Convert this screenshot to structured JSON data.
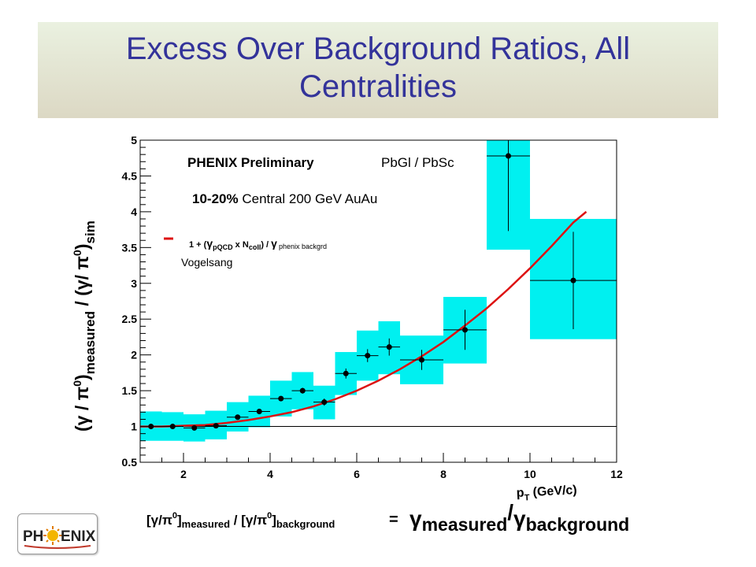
{
  "title": "Excess Over Background Ratios,  All Centralities",
  "title_lines": [
    "Excess Over Background Ratios,  All",
    "Centralities"
  ],
  "annotations": {
    "preliminary": "PHENIX Preliminary",
    "detectors": "PbGl / PbSc",
    "centrality_bold": "10-20%",
    "centrality_rest": "Central  200 GeV AuAu",
    "legend_pre": "1 + (",
    "legend_sub1": "pQCD",
    "legend_mid": " x N",
    "legend_sub2": "coll",
    "legend_post": ") / ",
    "legend_sub3": "phenix backgrd",
    "legend_author": "Vogelsang",
    "gamma": "γ"
  },
  "y_axis_label": {
    "part1": "(γ / π",
    "sup1": "0",
    "part2": ")",
    "sub1": "measured",
    "part3": " / (γ/ π",
    "sup2": "0",
    "part4": ")",
    "sub2": "sim"
  },
  "x_axis_label": {
    "p": "p",
    "sub": "T",
    "unit": " (GeV/c)"
  },
  "formula": {
    "left_open": "[γ/π",
    "sup": "0",
    "left_close": "]",
    "sub_measured": "measured",
    "slash": " / ",
    "right_open": "[γ/π",
    "right_close": "]",
    "sub_background": "background",
    "equals": "=",
    "gamma": "γ",
    "big_measured": "measured",
    "big_slash": "/",
    "big_background": "background"
  },
  "logo": {
    "left": "PH",
    "right": "ENIX"
  },
  "colors": {
    "title": "#33339a",
    "band": "#00f0f0",
    "fit": "#dd1111",
    "title_bg": "#dcd8c4"
  },
  "chart_data": {
    "type": "scatter",
    "xlim": [
      1,
      12
    ],
    "ylim": [
      0.5,
      5
    ],
    "xticks": [
      2,
      4,
      6,
      8,
      10,
      12
    ],
    "yticks": [
      0.5,
      1,
      1.5,
      2,
      2.5,
      3,
      3.5,
      4,
      4.5,
      5
    ],
    "reference_line_y": 1,
    "series": [
      {
        "points": [
          {
            "x": 1.25,
            "y": 1.0,
            "xerr": 0.25,
            "yerr": 0.01,
            "sys_lo": 0.8,
            "sys_hi": 1.21
          },
          {
            "x": 1.75,
            "y": 1.0,
            "xerr": 0.25,
            "yerr": 0.01,
            "sys_lo": 0.8,
            "sys_hi": 1.2
          },
          {
            "x": 2.25,
            "y": 0.98,
            "xerr": 0.25,
            "yerr": 0.01,
            "sys_lo": 0.79,
            "sys_hi": 1.17
          },
          {
            "x": 2.75,
            "y": 1.01,
            "xerr": 0.25,
            "yerr": 0.01,
            "sys_lo": 0.82,
            "sys_hi": 1.22
          },
          {
            "x": 3.25,
            "y": 1.13,
            "xerr": 0.25,
            "yerr": 0.02,
            "sys_lo": 0.93,
            "sys_hi": 1.34
          },
          {
            "x": 3.75,
            "y": 1.21,
            "xerr": 0.25,
            "yerr": 0.02,
            "sys_lo": 0.99,
            "sys_hi": 1.43
          },
          {
            "x": 4.25,
            "y": 1.39,
            "xerr": 0.25,
            "yerr": 0.03,
            "sys_lo": 1.14,
            "sys_hi": 1.64
          },
          {
            "x": 4.75,
            "y": 1.5,
            "xerr": 0.25,
            "yerr": 0.04,
            "sys_lo": 1.24,
            "sys_hi": 1.76
          },
          {
            "x": 5.25,
            "y": 1.34,
            "xerr": 0.25,
            "yerr": 0.05,
            "sys_lo": 1.1,
            "sys_hi": 1.57
          },
          {
            "x": 5.75,
            "y": 1.74,
            "xerr": 0.25,
            "yerr": 0.07,
            "sys_lo": 1.44,
            "sys_hi": 2.04
          },
          {
            "x": 6.25,
            "y": 1.99,
            "xerr": 0.25,
            "yerr": 0.09,
            "sys_lo": 1.64,
            "sys_hi": 2.34
          },
          {
            "x": 6.75,
            "y": 2.11,
            "xerr": 0.25,
            "yerr": 0.12,
            "sys_lo": 1.73,
            "sys_hi": 2.47
          },
          {
            "x": 7.5,
            "y": 1.93,
            "xerr": 0.5,
            "yerr": 0.14,
            "sys_lo": 1.59,
            "sys_hi": 2.27
          },
          {
            "x": 8.5,
            "y": 2.35,
            "xerr": 0.5,
            "yerr": 0.28,
            "sys_lo": 1.88,
            "sys_hi": 2.81
          },
          {
            "x": 9.5,
            "y": 4.78,
            "xerr": 0.5,
            "yerr": 1.05,
            "sys_lo": 3.47,
            "sys_hi": 5.0
          },
          {
            "x": 11.0,
            "y": 3.04,
            "xerr": 1.0,
            "yerr": 0.68,
            "sys_lo": 2.22,
            "sys_hi": 3.9
          }
        ]
      }
    ],
    "fit_curve": {
      "x": [
        1,
        1.5,
        2,
        2.5,
        3,
        3.5,
        4,
        4.5,
        5,
        5.5,
        6,
        6.5,
        7,
        7.5,
        8,
        8.5,
        9,
        9.5,
        10,
        10.5,
        11,
        11.3
      ],
      "y": [
        1.0,
        1.0,
        1.01,
        1.02,
        1.05,
        1.09,
        1.14,
        1.2,
        1.28,
        1.38,
        1.5,
        1.64,
        1.8,
        1.98,
        2.18,
        2.41,
        2.65,
        2.92,
        3.21,
        3.52,
        3.85,
        4.0
      ]
    }
  }
}
